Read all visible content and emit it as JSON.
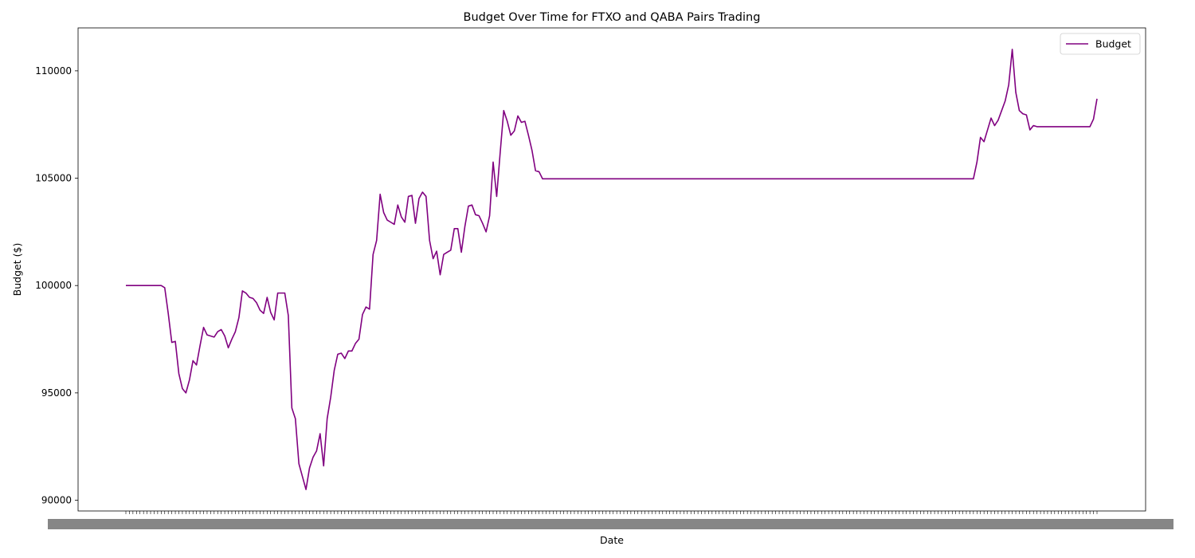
{
  "chart_data": {
    "type": "line",
    "title": "Budget Over Time for FTXO and QABA Pairs Trading",
    "xlabel": "Date",
    "ylabel": "Budget ($)",
    "ylim": [
      89500,
      112000
    ],
    "yticks": [
      90000,
      95000,
      100000,
      105000,
      110000
    ],
    "grid": false,
    "legend": {
      "position": "top-right",
      "entries": [
        "Budget"
      ]
    },
    "series": [
      {
        "name": "Budget",
        "color": "#800080",
        "values": [
          100000,
          100000,
          100000,
          100000,
          100000,
          100000,
          100000,
          100000,
          100000,
          100000,
          100000,
          99900,
          98700,
          97350,
          97400,
          95900,
          95200,
          95000,
          95600,
          96500,
          96300,
          97200,
          98050,
          97700,
          97650,
          97600,
          97850,
          97950,
          97650,
          97100,
          97500,
          97850,
          98500,
          99750,
          99650,
          99450,
          99400,
          99200,
          98850,
          98700,
          99450,
          98750,
          98400,
          99650,
          99650,
          99650,
          98600,
          94300,
          93800,
          91700,
          91100,
          90500,
          91500,
          92000,
          92300,
          93100,
          91600,
          93800,
          94800,
          96050,
          96800,
          96850,
          96600,
          96950,
          96950,
          97300,
          97500,
          98650,
          99000,
          98900,
          101450,
          102100,
          104250,
          103400,
          103050,
          102950,
          102850,
          103750,
          103200,
          102950,
          104150,
          104200,
          102900,
          104050,
          104350,
          104150,
          102100,
          101250,
          101600,
          100500,
          101450,
          101550,
          101650,
          102650,
          102650,
          101550,
          102750,
          103700,
          103750,
          103300,
          103250,
          102900,
          102500,
          103250,
          105750,
          104150,
          106200,
          108150,
          107650,
          107000,
          107200,
          107900,
          107600,
          107650,
          107000,
          106300,
          105350,
          105300,
          104970,
          104970,
          104970,
          104970,
          104970,
          104970,
          104970,
          104970,
          104970,
          104970,
          104970,
          104970,
          104970,
          104970,
          104970,
          104970,
          104970,
          104970,
          104970,
          104970,
          104970,
          104970,
          104970,
          104970,
          104970,
          104970,
          104970,
          104970,
          104970,
          104970,
          104970,
          104970,
          104970,
          104970,
          104970,
          104970,
          104970,
          104970,
          104970,
          104970,
          104970,
          104970,
          104970,
          104970,
          104970,
          104970,
          104970,
          104970,
          104970,
          104970,
          104970,
          104970,
          104970,
          104970,
          104970,
          104970,
          104970,
          104970,
          104970,
          104970,
          104970,
          104970,
          104970,
          104970,
          104970,
          104970,
          104970,
          104970,
          104970,
          104970,
          104970,
          104970,
          104970,
          104970,
          104970,
          104970,
          104970,
          104970,
          104970,
          104970,
          104970,
          104970,
          104970,
          104970,
          104970,
          104970,
          104970,
          104970,
          104970,
          104970,
          104970,
          104970,
          104970,
          104970,
          104970,
          104970,
          104970,
          104970,
          104970,
          104970,
          104970,
          104970,
          104970,
          104970,
          104970,
          104970,
          104970,
          104970,
          104970,
          104970,
          104970,
          104970,
          104970,
          104970,
          104970,
          104970,
          104970,
          104970,
          104970,
          104970,
          104970,
          104970,
          104970,
          105750,
          106900,
          106700,
          107250,
          107800,
          107450,
          107700,
          108150,
          108600,
          109350,
          111000,
          109000,
          108150,
          108000,
          107950,
          107250,
          107450,
          107400,
          107400,
          107400,
          107400,
          107400,
          107400,
          107400,
          107400,
          107400,
          107400,
          107400,
          107400,
          107400,
          107400,
          107400,
          107400,
          107750,
          108700
        ]
      }
    ]
  }
}
